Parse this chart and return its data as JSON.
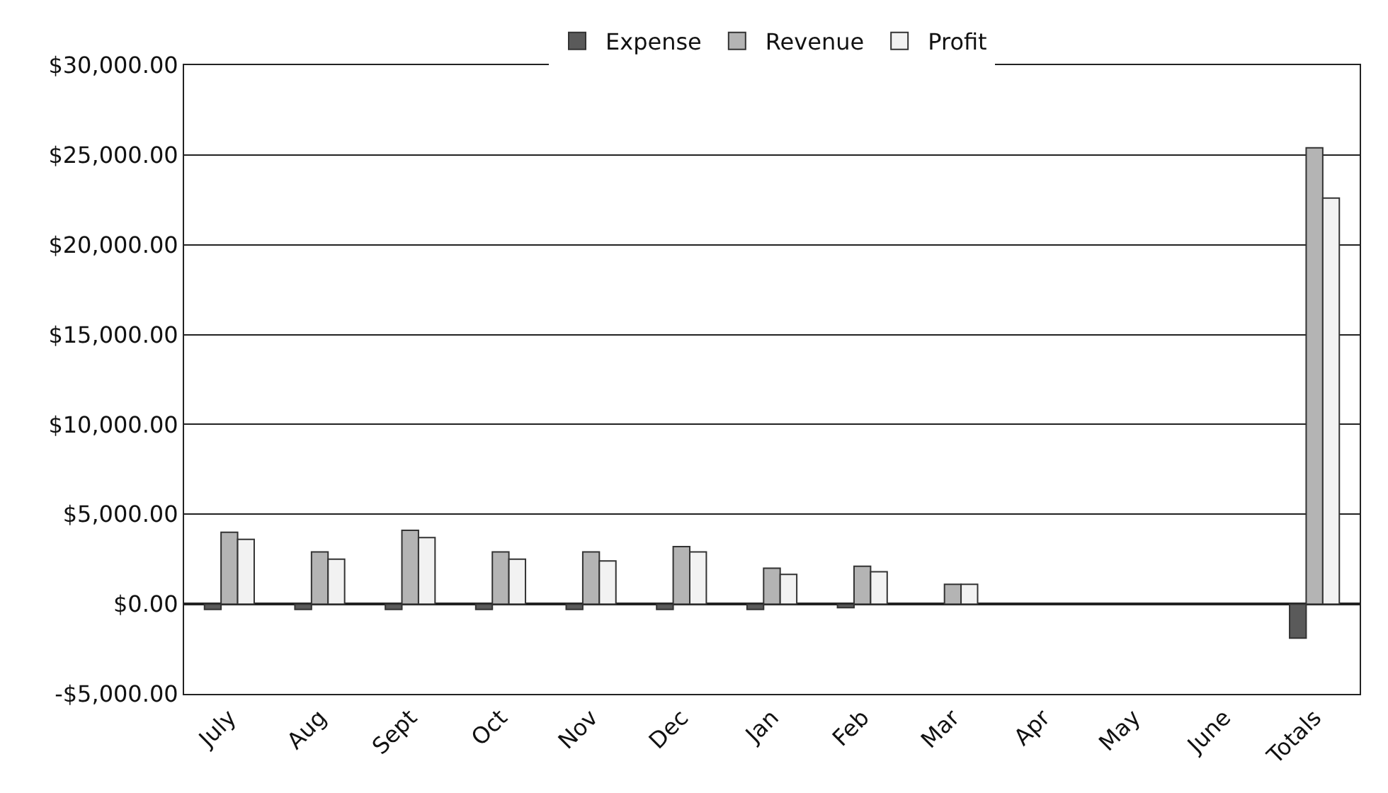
{
  "chart_data": {
    "type": "bar",
    "categories": [
      "July",
      "Aug",
      "Sept",
      "Oct",
      "Nov",
      "Dec",
      "Jan",
      "Feb",
      "Mar",
      "Apr",
      "May",
      "June",
      "Totals"
    ],
    "series": [
      {
        "name": "Expense",
        "color": "#5a5a5a",
        "values": [
          -300,
          -300,
          -300,
          -300,
          -300,
          -300,
          -300,
          -200,
          null,
          null,
          null,
          null,
          -1900
        ]
      },
      {
        "name": "Revenue",
        "color": "#b4b4b4",
        "values": [
          4000,
          2900,
          4100,
          2900,
          2900,
          3200,
          2000,
          2100,
          1100,
          null,
          null,
          null,
          25400
        ]
      },
      {
        "name": "Profit",
        "color": "#f2f2f2",
        "values": [
          3600,
          2500,
          3700,
          2500,
          2400,
          2900,
          1650,
          1800,
          1100,
          null,
          null,
          null,
          22600
        ]
      }
    ],
    "ylim": [
      -5000,
      30000
    ],
    "yticks": [
      {
        "value": -5000,
        "label": "-$5,000.00"
      },
      {
        "value": 0,
        "label": "$0.00"
      },
      {
        "value": 5000,
        "label": "$5,000.00"
      },
      {
        "value": 10000,
        "label": "$10,000.00"
      },
      {
        "value": 15000,
        "label": "$15,000.00"
      },
      {
        "value": 20000,
        "label": "$20,000.00"
      },
      {
        "value": 25000,
        "label": "$25,000.00"
      },
      {
        "value": 30000,
        "label": "$30,000.00"
      }
    ],
    "grid": "y",
    "legend": "top"
  }
}
